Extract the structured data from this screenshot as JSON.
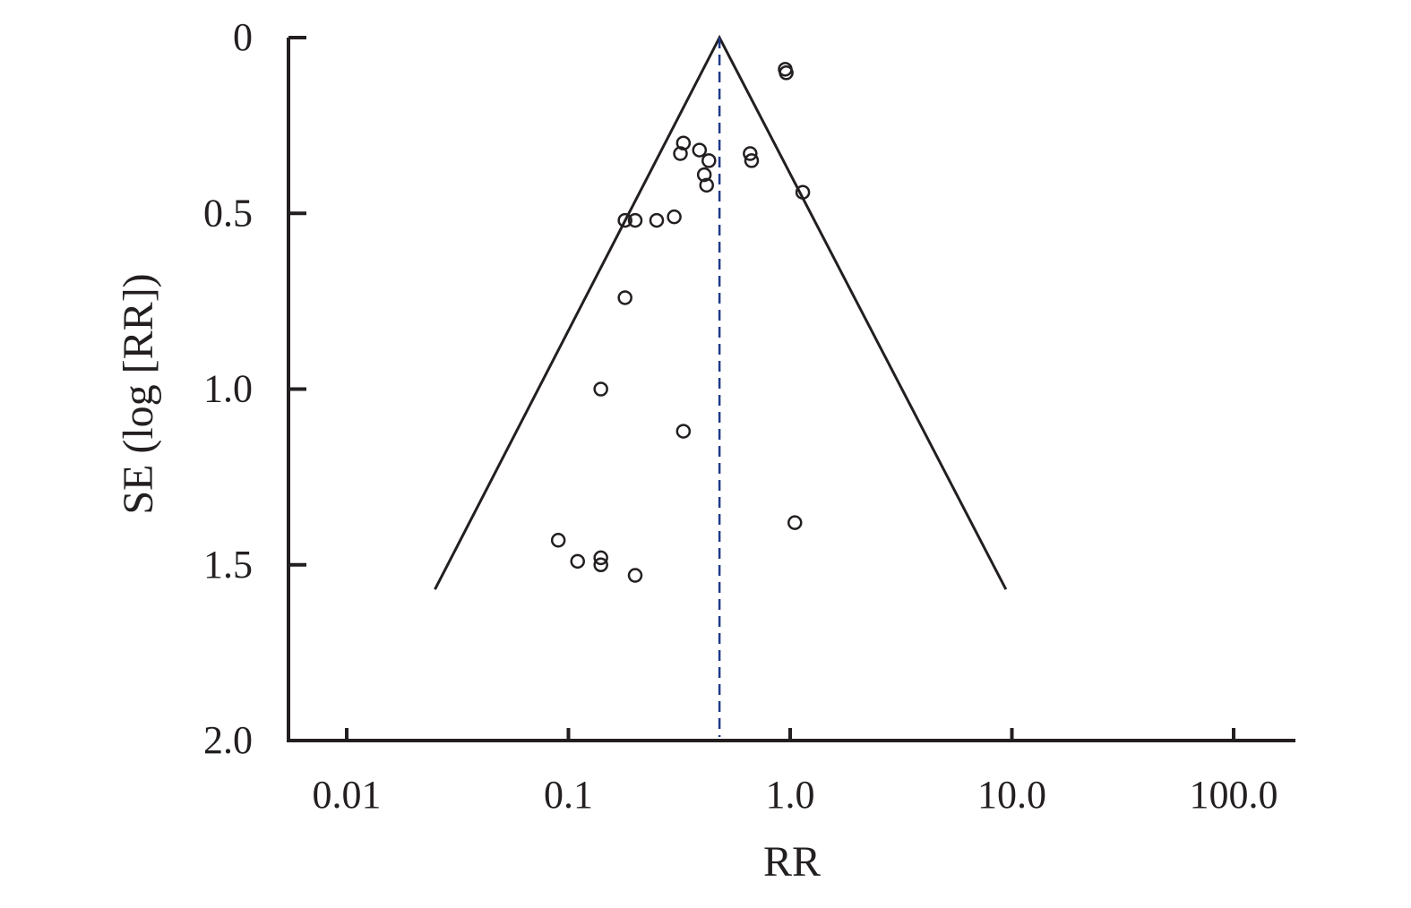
{
  "chart_data": {
    "type": "scatter",
    "subtype": "funnel-plot",
    "title": "",
    "xlabel": "RR",
    "ylabel": "SE (log [RR])",
    "x_scale": "log10",
    "xlim": [
      0.0056,
      18.0
    ],
    "ylim": [
      0,
      2.0
    ],
    "y_inverted": true,
    "x_ticks": [
      0.01,
      0.1,
      1.0,
      10.0,
      100.0
    ],
    "x_tick_labels": [
      "0.01",
      "0.1",
      "1.0",
      "10.0",
      "100.0"
    ],
    "y_ticks": [
      0,
      0.5,
      1.0,
      1.5,
      2.0
    ],
    "y_tick_labels": [
      "0",
      "0.5",
      "1.0",
      "1.5",
      "2.0"
    ],
    "grid": false,
    "pooled_rr": 0.48,
    "funnel_lines": {
      "apex": [
        0.48,
        0
      ],
      "left_end": [
        0.025,
        1.57
      ],
      "right_end": [
        9.4,
        1.57
      ]
    },
    "points": [
      {
        "x": 0.95,
        "y": 0.09
      },
      {
        "x": 0.96,
        "y": 0.1
      },
      {
        "x": 0.33,
        "y": 0.3
      },
      {
        "x": 0.32,
        "y": 0.33
      },
      {
        "x": 0.39,
        "y": 0.32
      },
      {
        "x": 0.43,
        "y": 0.35
      },
      {
        "x": 0.66,
        "y": 0.33
      },
      {
        "x": 0.67,
        "y": 0.35
      },
      {
        "x": 0.41,
        "y": 0.39
      },
      {
        "x": 0.42,
        "y": 0.42
      },
      {
        "x": 1.14,
        "y": 0.44
      },
      {
        "x": 0.18,
        "y": 0.52
      },
      {
        "x": 0.2,
        "y": 0.52
      },
      {
        "x": 0.25,
        "y": 0.52
      },
      {
        "x": 0.3,
        "y": 0.51
      },
      {
        "x": 0.18,
        "y": 0.74
      },
      {
        "x": 0.14,
        "y": 1.0
      },
      {
        "x": 0.33,
        "y": 1.12
      },
      {
        "x": 1.05,
        "y": 1.38
      },
      {
        "x": 0.09,
        "y": 1.43
      },
      {
        "x": 0.11,
        "y": 1.49
      },
      {
        "x": 0.14,
        "y": 1.48
      },
      {
        "x": 0.14,
        "y": 1.5
      },
      {
        "x": 0.2,
        "y": 1.53
      }
    ],
    "colors": {
      "axis": "#231f20",
      "funnel": "#231f20",
      "points": "#231f20",
      "pooled_line": "#1f3a8a"
    }
  }
}
